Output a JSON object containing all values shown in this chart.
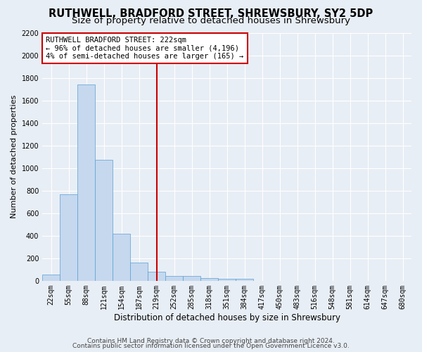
{
  "title": "RUTHWELL, BRADFORD STREET, SHREWSBURY, SY2 5DP",
  "subtitle": "Size of property relative to detached houses in Shrewsbury",
  "xlabel": "Distribution of detached houses by size in Shrewsbury",
  "ylabel": "Number of detached properties",
  "bar_labels": [
    "22sqm",
    "55sqm",
    "88sqm",
    "121sqm",
    "154sqm",
    "187sqm",
    "219sqm",
    "252sqm",
    "285sqm",
    "318sqm",
    "351sqm",
    "384sqm",
    "417sqm",
    "450sqm",
    "483sqm",
    "516sqm",
    "548sqm",
    "581sqm",
    "614sqm",
    "647sqm",
    "680sqm"
  ],
  "bar_values": [
    55,
    770,
    1740,
    1070,
    420,
    160,
    80,
    45,
    40,
    25,
    20,
    15,
    0,
    0,
    0,
    0,
    0,
    0,
    0,
    0,
    0
  ],
  "bar_color": "#c5d8ee",
  "bar_edgecolor": "#5a9fd4",
  "vline_x_index": 6,
  "vline_color": "#cc0000",
  "annotation_text": "RUTHWELL BRADFORD STREET: 222sqm\n← 96% of detached houses are smaller (4,196)\n4% of semi-detached houses are larger (165) →",
  "annotation_box_facecolor": "#ffffff",
  "annotation_box_edgecolor": "#cc0000",
  "ylim": [
    0,
    2200
  ],
  "yticks": [
    0,
    200,
    400,
    600,
    800,
    1000,
    1200,
    1400,
    1600,
    1800,
    2000,
    2200
  ],
  "background_color": "#e8eef5",
  "grid_color": "#ffffff",
  "footer_line1": "Contains HM Land Registry data © Crown copyright and database right 2024.",
  "footer_line2": "Contains public sector information licensed under the Open Government Licence v3.0.",
  "title_fontsize": 10.5,
  "subtitle_fontsize": 9.5,
  "xlabel_fontsize": 8.5,
  "ylabel_fontsize": 8,
  "tick_fontsize": 7,
  "annotation_fontsize": 7.5,
  "footer_fontsize": 6.5
}
